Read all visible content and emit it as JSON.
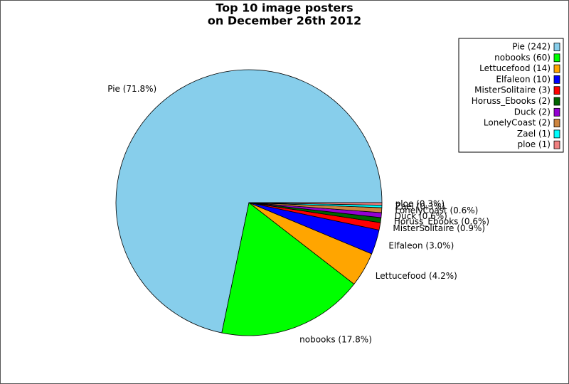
{
  "chart_data": {
    "type": "pie",
    "title": "Top 10 image posters",
    "subtitle": "on December 26th 2012",
    "categories": [
      "Pie (242)",
      "nobooks (60)",
      "Lettucefood (14)",
      "Elfaleon (10)",
      "MisterSolitaire (3)",
      "Horuss_Ebooks (2)",
      "Duck (2)",
      "LonelyCoast (2)",
      "Zael (1)",
      "ploe (1)"
    ],
    "values": [
      71.8,
      17.8,
      4.2,
      3.0,
      0.9,
      0.6,
      0.6,
      0.6,
      0.3,
      0.3
    ],
    "value_labels": [
      "Pie (71.8%)",
      "nobooks (17.8%)",
      "Lettucefood (4.2%)",
      "Elfaleon (3.0%)",
      "MisterSolitaire (0.9%)",
      "Horuss_Ebooks (0.6%)",
      "Duck (0.6%)",
      "LonelyCoast (0.6%)",
      "Zael (0.3%)",
      "ploe (0.3%)"
    ],
    "colors": [
      "#87ceeb",
      "#00ff00",
      "#ffa500",
      "#0000ff",
      "#ff0000",
      "#006400",
      "#9400d3",
      "#cd853f",
      "#00ffff",
      "#f08080"
    ],
    "legend": "upper right"
  }
}
